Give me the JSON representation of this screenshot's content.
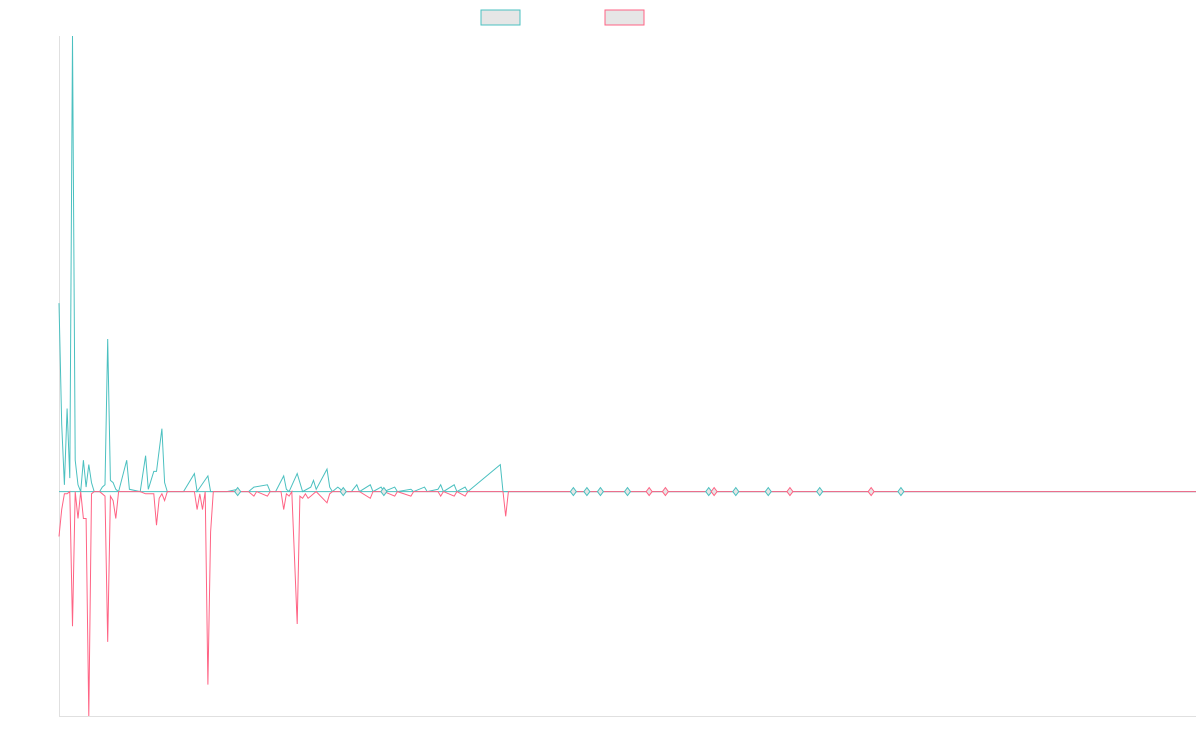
{
  "chart_data": {
    "type": "line",
    "title": "",
    "xlabel": "",
    "ylabel": "",
    "x_range": [
      0,
      420
    ],
    "ylim": [
      -1.0,
      2.03
    ],
    "grid": false,
    "legend": {
      "placement": "top-center",
      "entries": [
        "",
        ""
      ]
    },
    "baseline": 0,
    "series": [
      {
        "name": "",
        "color": "#4bc0c0",
        "fill": "#e6e6e6",
        "points": [
          [
            0,
            0.84
          ],
          [
            1,
            0.3
          ],
          [
            2,
            0.03
          ],
          [
            3,
            0.37
          ],
          [
            4,
            0.06
          ],
          [
            5,
            2.03
          ],
          [
            6,
            0.14
          ],
          [
            7,
            0.03
          ],
          [
            8,
            0.0
          ],
          [
            9,
            0.14
          ],
          [
            10,
            0.02
          ],
          [
            11,
            0.12
          ],
          [
            12,
            0.04
          ],
          [
            13,
            0.0
          ],
          [
            14,
            0.0
          ],
          [
            15,
            0.0
          ],
          [
            16,
            0.02
          ],
          [
            17,
            0.03
          ],
          [
            18,
            0.68
          ],
          [
            19,
            0.05
          ],
          [
            20,
            0.04
          ],
          [
            21,
            0.01
          ],
          [
            22,
            0.0
          ],
          [
            25,
            0.14
          ],
          [
            26,
            0.01
          ],
          [
            30,
            0.0
          ],
          [
            32,
            0.16
          ],
          [
            33,
            0.01
          ],
          [
            35,
            0.09
          ],
          [
            36,
            0.09
          ],
          [
            38,
            0.28
          ],
          [
            39,
            0.04
          ],
          [
            40,
            0.0
          ],
          [
            45,
            0.0
          ],
          [
            46,
            0.0
          ],
          [
            50,
            0.08
          ],
          [
            51,
            0.0
          ],
          [
            55,
            0.07
          ],
          [
            56,
            0.0
          ],
          [
            62,
            0.0
          ],
          [
            66,
            0.01
          ],
          [
            67,
            0.0
          ],
          [
            70,
            0.0
          ],
          [
            72,
            0.02
          ],
          [
            77,
            0.03
          ],
          [
            78,
            0.0
          ],
          [
            80,
            0.0
          ],
          [
            83,
            0.07
          ],
          [
            84,
            0.01
          ],
          [
            85,
            0.0
          ],
          [
            88,
            0.08
          ],
          [
            89,
            0.04
          ],
          [
            90,
            0.0
          ],
          [
            93,
            0.02
          ],
          [
            94,
            0.05
          ],
          [
            95,
            0.01
          ],
          [
            99,
            0.1
          ],
          [
            100,
            0.02
          ],
          [
            101,
            0.0
          ],
          [
            103,
            0.02
          ],
          [
            104,
            0.01
          ],
          [
            105,
            0.0
          ],
          [
            108,
            0.0
          ],
          [
            110,
            0.03
          ],
          [
            111,
            0.0
          ],
          [
            115,
            0.03
          ],
          [
            116,
            0.0
          ],
          [
            119,
            0.02
          ],
          [
            120,
            0.0
          ],
          [
            124,
            0.02
          ],
          [
            125,
            0.0
          ],
          [
            130,
            0.01
          ],
          [
            131,
            0.0
          ],
          [
            135,
            0.02
          ],
          [
            136,
            0.0
          ],
          [
            140,
            0.01
          ],
          [
            141,
            0.03
          ],
          [
            142,
            0.0
          ],
          [
            146,
            0.03
          ],
          [
            147,
            0.0
          ],
          [
            150,
            0.02
          ],
          [
            151,
            0.0
          ],
          [
            163,
            0.12
          ],
          [
            164,
            0.0
          ],
          [
            190,
            0.0
          ],
          [
            195,
            0.0
          ],
          [
            200,
            0.0
          ],
          [
            210,
            0.0
          ],
          [
            225,
            0.0
          ],
          [
            240,
            0.0
          ],
          [
            242,
            0.0
          ],
          [
            250,
            0.0
          ],
          [
            262,
            0.0
          ],
          [
            270,
            0.0
          ],
          [
            281,
            0.0
          ],
          [
            300,
            0.0
          ],
          [
            311,
            0.0
          ],
          [
            330,
            0.0
          ],
          [
            420,
            0.0
          ]
        ]
      },
      {
        "name": "",
        "color": "#ff6384",
        "fill": "#e6e6e6",
        "points": [
          [
            0,
            -0.2
          ],
          [
            1,
            -0.08
          ],
          [
            2,
            -0.01
          ],
          [
            3,
            -0.01
          ],
          [
            4,
            0.0
          ],
          [
            5,
            -0.6
          ],
          [
            6,
            0.0
          ],
          [
            7,
            -0.12
          ],
          [
            8,
            0.0
          ],
          [
            9,
            -0.12
          ],
          [
            10,
            -0.12
          ],
          [
            11,
            -1.0
          ],
          [
            12,
            -0.01
          ],
          [
            13,
            0.0
          ],
          [
            14,
            0.0
          ],
          [
            15,
            0.0
          ],
          [
            16,
            -0.01
          ],
          [
            17,
            -0.02
          ],
          [
            18,
            -0.67
          ],
          [
            19,
            -0.02
          ],
          [
            20,
            -0.04
          ],
          [
            21,
            -0.12
          ],
          [
            22,
            0.0
          ],
          [
            25,
            0.0
          ],
          [
            30,
            0.0
          ],
          [
            32,
            -0.01
          ],
          [
            33,
            -0.01
          ],
          [
            35,
            -0.01
          ],
          [
            36,
            -0.15
          ],
          [
            37,
            -0.03
          ],
          [
            38,
            -0.01
          ],
          [
            39,
            -0.04
          ],
          [
            40,
            0.0
          ],
          [
            45,
            0.0
          ],
          [
            50,
            0.0
          ],
          [
            51,
            -0.08
          ],
          [
            52,
            -0.01
          ],
          [
            53,
            -0.08
          ],
          [
            54,
            0.0
          ],
          [
            55,
            -0.86
          ],
          [
            56,
            -0.18
          ],
          [
            57,
            0.0
          ],
          [
            62,
            0.0
          ],
          [
            70,
            0.0
          ],
          [
            72,
            -0.02
          ],
          [
            73,
            0.0
          ],
          [
            77,
            -0.02
          ],
          [
            78,
            0.0
          ],
          [
            82,
            0.0
          ],
          [
            83,
            -0.08
          ],
          [
            84,
            -0.01
          ],
          [
            85,
            -0.02
          ],
          [
            86,
            0.0
          ],
          [
            88,
            -0.59
          ],
          [
            89,
            -0.02
          ],
          [
            90,
            -0.03
          ],
          [
            91,
            -0.01
          ],
          [
            92,
            -0.03
          ],
          [
            93,
            -0.02
          ],
          [
            94,
            -0.01
          ],
          [
            95,
            0.0
          ],
          [
            99,
            -0.05
          ],
          [
            100,
            -0.01
          ],
          [
            101,
            0.0
          ],
          [
            105,
            0.0
          ],
          [
            111,
            0.0
          ],
          [
            115,
            -0.03
          ],
          [
            116,
            0.0
          ],
          [
            120,
            0.0
          ],
          [
            124,
            -0.02
          ],
          [
            125,
            0.0
          ],
          [
            130,
            -0.02
          ],
          [
            131,
            0.0
          ],
          [
            140,
            0.0
          ],
          [
            141,
            -0.02
          ],
          [
            142,
            0.0
          ],
          [
            146,
            -0.02
          ],
          [
            147,
            0.0
          ],
          [
            150,
            -0.02
          ],
          [
            151,
            0.0
          ],
          [
            164,
            0.0
          ],
          [
            165,
            -0.11
          ],
          [
            166,
            0.0
          ],
          [
            190,
            0.0
          ],
          [
            195,
            0.0
          ],
          [
            200,
            0.0
          ],
          [
            210,
            0.0
          ],
          [
            218,
            0.0
          ],
          [
            222,
            0.0
          ],
          [
            224,
            0.0
          ],
          [
            240,
            0.0
          ],
          [
            242,
            0.0
          ],
          [
            250,
            0.0
          ],
          [
            262,
            0.0
          ],
          [
            270,
            0.0
          ],
          [
            281,
            0.0
          ],
          [
            300,
            0.0
          ],
          [
            311,
            0.0
          ],
          [
            330,
            0.0
          ],
          [
            420,
            0.0
          ]
        ]
      }
    ],
    "markers": [
      {
        "x": 66,
        "y": 0,
        "series": 0
      },
      {
        "x": 105,
        "y": 0,
        "series": 0
      },
      {
        "x": 120,
        "y": 0,
        "series": 0
      },
      {
        "x": 190,
        "y": 0,
        "series": 0
      },
      {
        "x": 195,
        "y": 0,
        "series": 0
      },
      {
        "x": 200,
        "y": 0,
        "series": 0
      },
      {
        "x": 210,
        "y": 0,
        "series": 0
      },
      {
        "x": 218,
        "y": 0,
        "series": 1
      },
      {
        "x": 224,
        "y": 0,
        "series": 1
      },
      {
        "x": 240,
        "y": 0,
        "series": 0
      },
      {
        "x": 242,
        "y": 0,
        "series": 1
      },
      {
        "x": 250,
        "y": 0,
        "series": 0
      },
      {
        "x": 262,
        "y": 0,
        "series": 0
      },
      {
        "x": 270,
        "y": 0,
        "series": 1
      },
      {
        "x": 281,
        "y": 0,
        "series": 0
      },
      {
        "x": 300,
        "y": 0,
        "series": 1
      },
      {
        "x": 311,
        "y": 0,
        "series": 0
      }
    ]
  }
}
